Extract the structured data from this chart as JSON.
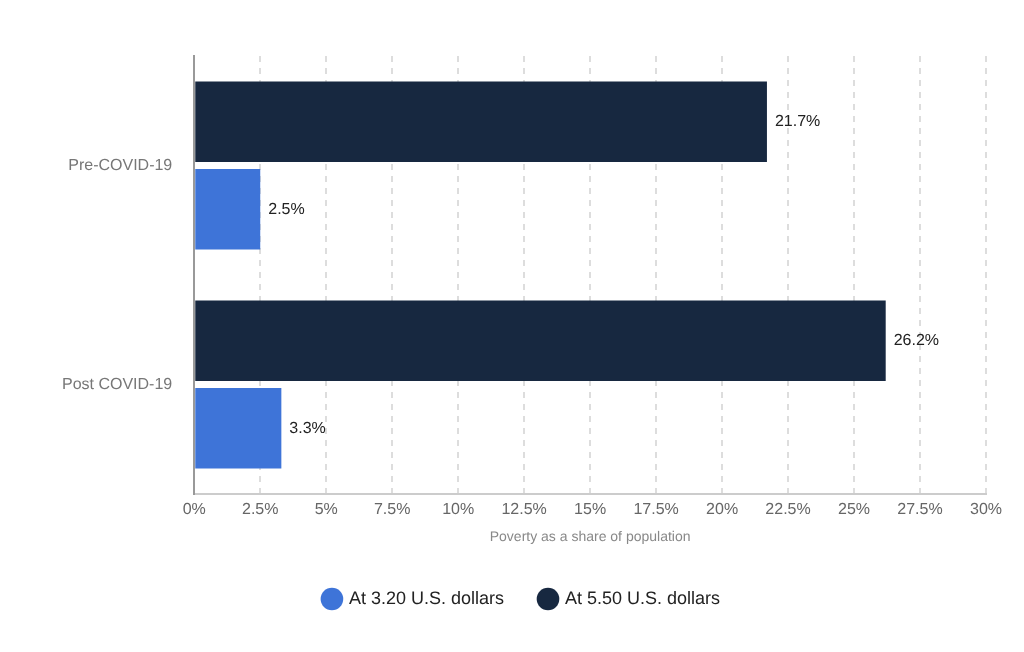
{
  "chart_data": {
    "type": "bar",
    "orientation": "horizontal",
    "xlabel": "Poverty as a share of population",
    "categories": [
      "Pre-COVID-19",
      "Post COVID-19"
    ],
    "series": [
      {
        "name": "At 5.50 U.S. dollars",
        "color": "#172840",
        "values": [
          21.7,
          26.2
        ],
        "value_labels": [
          "21.7%",
          "26.2%"
        ]
      },
      {
        "name": "At 3.20 U.S. dollars",
        "color": "#3e74d8",
        "values": [
          2.5,
          3.3
        ],
        "value_labels": [
          "2.5%",
          "3.3%"
        ]
      }
    ],
    "xlim": [
      0,
      30
    ],
    "xticks": [
      {
        "value": 0,
        "label": "0%"
      },
      {
        "value": 2.5,
        "label": "2.5%"
      },
      {
        "value": 5,
        "label": "5%"
      },
      {
        "value": 7.5,
        "label": "7.5%"
      },
      {
        "value": 10,
        "label": "10%"
      },
      {
        "value": 12.5,
        "label": "12.5%"
      },
      {
        "value": 15,
        "label": "15%"
      },
      {
        "value": 17.5,
        "label": "17.5%"
      },
      {
        "value": 20,
        "label": "20%"
      },
      {
        "value": 22.5,
        "label": "22.5%"
      },
      {
        "value": 25,
        "label": "25%"
      },
      {
        "value": 27.5,
        "label": "27.5%"
      },
      {
        "value": 30,
        "label": "30%"
      }
    ],
    "grid": "x",
    "legend": "bottom"
  }
}
